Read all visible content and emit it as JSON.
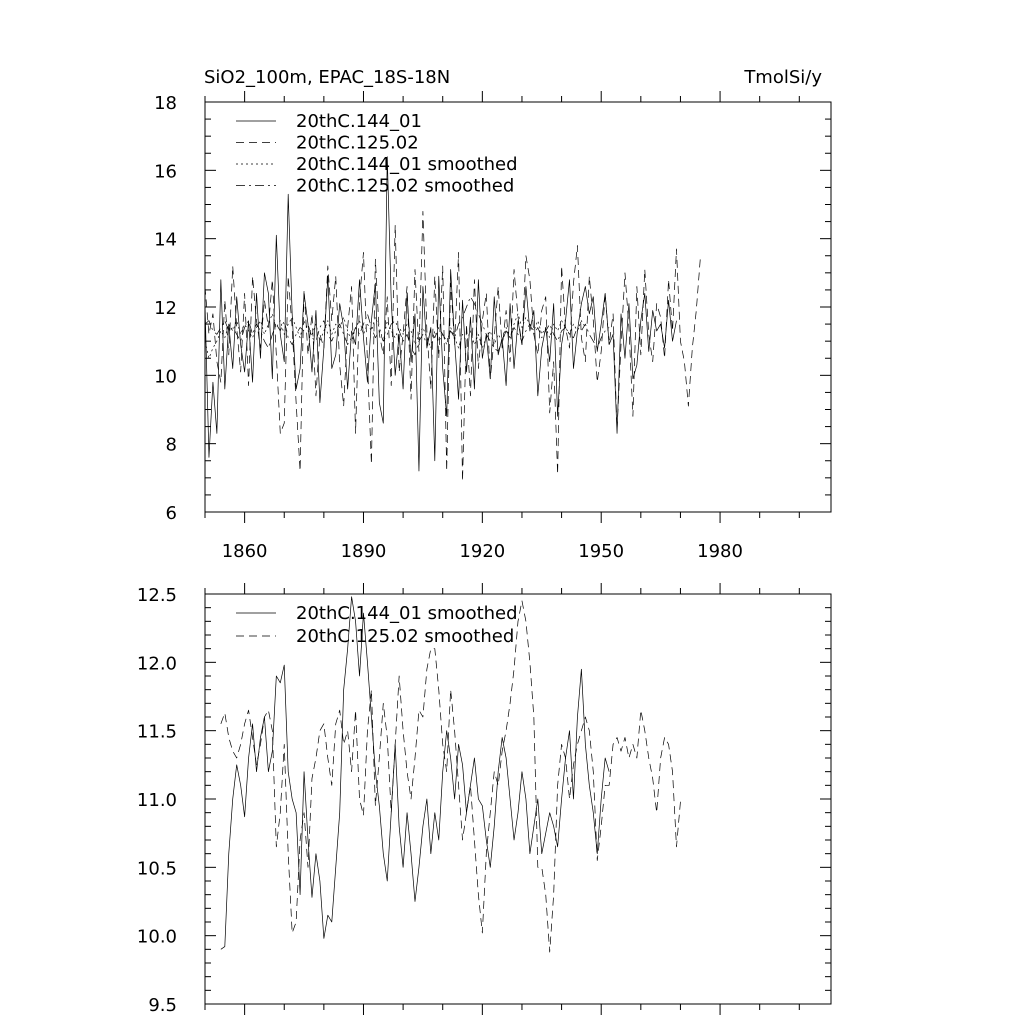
{
  "chart_data": [
    {
      "type": "line",
      "title_left": "SiO2_100m, EPAC_18S-18N",
      "title_right": "TmolSi/y",
      "xlabel": "",
      "ylabel": "",
      "xlim": [
        1850,
        2008
      ],
      "ylim": [
        6,
        18
      ],
      "x_ticks": [
        1860,
        1890,
        1920,
        1950,
        1980
      ],
      "y_ticks": [
        6,
        8,
        10,
        12,
        14,
        16,
        18
      ],
      "y_tick_labels": [
        "6",
        "8",
        "10",
        "12",
        "14",
        "16",
        "18"
      ],
      "x_tick_labels": [
        "1860",
        "1890",
        "1920",
        "1950",
        "1980"
      ],
      "legend": [
        {
          "label": "20thC.144_01",
          "style": "solid"
        },
        {
          "label": "20thC.125.02",
          "style": "dashed"
        },
        {
          "label": "20thC.144_01 smoothed",
          "style": "dotted"
        },
        {
          "label": "20thC.125.02 smoothed",
          "style": "dashdot"
        }
      ],
      "series": [
        {
          "name": "20thC.144_01",
          "style": "solid",
          "x_start": 1850,
          "values": [
            12.1,
            7.6,
            9.8,
            8.3,
            12.8,
            9.6,
            11.5,
            10.2,
            12.3,
            10.9,
            10.1,
            11.6,
            9.8,
            12.4,
            10.5,
            13.0,
            12.4,
            9.9,
            14.1,
            11.2,
            10.4,
            15.3,
            11.8,
            9.6,
            10.2,
            12.4,
            11.5,
            10.1,
            11.9,
            9.2,
            10.8,
            12.9,
            10.2,
            10.6,
            12.1,
            11.4,
            9.6,
            11.3,
            10.9,
            12.8,
            11.1,
            9.8,
            11.6,
            12.7,
            9.2,
            8.6,
            16.4,
            12.2,
            10.0,
            11.2,
            9.6,
            12.4,
            10.4,
            11.8,
            7.2,
            12.6,
            10.8,
            11.4,
            7.5,
            12.9,
            10.2,
            8.8,
            13.1,
            11.0,
            9.3,
            12.2,
            10.1,
            11.7,
            9.6,
            12.8,
            10.5,
            11.2,
            9.9,
            12.3,
            10.6,
            11.1,
            9.7,
            12.1,
            10.2,
            11.6,
            10.9,
            12.6,
            11.3,
            11.9,
            9.4,
            10.8,
            11.4,
            10.4,
            12.1,
            8.8,
            10.9,
            11.6,
            12.8,
            10.2,
            11.3,
            12.1,
            12.6,
            11.8,
            12.3,
            10.7,
            11.5,
            12.4,
            10.9,
            11.2,
            8.3,
            11.8,
            10.5,
            12.1,
            9.9,
            10.3,
            11.6,
            12.4,
            10.7,
            11.9,
            11.3,
            11.5,
            10.8,
            12.2,
            11.0,
            11.6
          ]
        },
        {
          "name": "20thC.125.02",
          "style": "dashed",
          "x_start": 1850,
          "values": [
            12.6,
            11.2,
            11.8,
            10.4,
            9.8,
            12.2,
            10.6,
            13.2,
            11.4,
            10.1,
            12.4,
            9.7,
            12.9,
            11.6,
            10.8,
            12.2,
            11.4,
            12.8,
            10.6,
            8.3,
            8.6,
            12.9,
            11.4,
            9.2,
            7.2,
            12.5,
            10.6,
            11.8,
            9.4,
            11.2,
            10.8,
            13.2,
            11.6,
            12.9,
            10.3,
            9.1,
            11.4,
            12.6,
            8.3,
            12.2,
            13.6,
            10.4,
            7.4,
            13.4,
            11.2,
            10.6,
            12.3,
            9.7,
            14.4,
            10.1,
            11.2,
            12.6,
            9.3,
            13.1,
            10.7,
            14.8,
            11.3,
            9.6,
            12.9,
            10.5,
            13.2,
            7.2,
            12.7,
            10.9,
            13.6,
            6.9,
            11.5,
            9.4,
            12.8,
            10.2,
            11.6,
            12.4,
            9.9,
            11.1,
            12.6,
            10.8,
            11.9,
            10.4,
            13.1,
            11.7,
            10.9,
            13.5,
            12.8,
            11.2,
            10.6,
            11.9,
            12.3,
            8.9,
            10.4,
            7.1,
            13.2,
            11.4,
            10.8,
            12.7,
            13.8,
            11.1,
            10.4,
            12.9,
            11.6,
            9.8,
            10.7,
            12.4,
            10.9,
            11.8,
            8.4,
            10.9,
            13.0,
            11.4,
            8.8,
            12.6,
            10.6,
            13.1,
            11.2,
            10.4,
            12.1,
            11.7,
            10.5,
            12.8,
            11.3,
            13.7,
            11.0,
            10.4,
            9.1,
            10.8,
            11.9,
            13.4
          ]
        },
        {
          "name": "20thC.144_01 smoothed",
          "style": "dotted",
          "x_start": 1850,
          "values": [
            11.0,
            10.5,
            10.8,
            11.0,
            11.3,
            11.1,
            11.5,
            11.3,
            11.6,
            11.2,
            11.5,
            11.3,
            11.1,
            11.4,
            11.6,
            11.2,
            11.5,
            11.8,
            11.4,
            11.6,
            11.2,
            11.5,
            11.7,
            11.4,
            11.1,
            11.6,
            11.3,
            11.2,
            11.5,
            11.0,
            11.3,
            11.6,
            11.2,
            11.5,
            11.4,
            11.7,
            11.3,
            11.0,
            11.4,
            11.6,
            11.2,
            11.5,
            11.3,
            11.7,
            11.4,
            11.0,
            11.6,
            11.3,
            11.1,
            11.4,
            11.2,
            11.5,
            11.3,
            10.9,
            11.2,
            11.4,
            11.1,
            10.8,
            11.3,
            11.0,
            11.2,
            10.9,
            11.4,
            11.1,
            10.8,
            11.2,
            11.0,
            11.3,
            10.9,
            11.2,
            10.8,
            11.1,
            11.3,
            10.9,
            11.2,
            11.0,
            11.4,
            11.1,
            11.5,
            11.8,
            11.4,
            11.7,
            11.5,
            11.3,
            11.6,
            11.2,
            11.4,
            11.1,
            11.5,
            11.3,
            11.6,
            11.4,
            11.2,
            11.5,
            11.3,
            11.6,
            11.4
          ]
        },
        {
          "name": "20thC.125.02 smoothed",
          "style": "dashdot",
          "x_start": 1850,
          "values": [
            11.5,
            11.6,
            11.3,
            11.2,
            11.4,
            11.6,
            11.3,
            11.4,
            11.2,
            11.0,
            11.4,
            11.6,
            11.2,
            11.5,
            11.3,
            11.0,
            10.8,
            11.2,
            11.5,
            11.3,
            11.6,
            11.1,
            10.9,
            11.2,
            11.4,
            11.3,
            11.5,
            11.1,
            11.0,
            11.4,
            11.6,
            11.2,
            11.0,
            11.3,
            11.5,
            11.2,
            10.9,
            11.1,
            11.4,
            11.2,
            11.5,
            11.8,
            11.4,
            11.1,
            11.3,
            11.0,
            11.2,
            11.5,
            11.6,
            11.3,
            11.0,
            11.2,
            10.8,
            10.6,
            11.0,
            11.2,
            10.9,
            11.3,
            11.1,
            11.4,
            11.2,
            11.0,
            11.3,
            11.1,
            11.5,
            11.7,
            12.0,
            12.3,
            12.1,
            11.8,
            11.5,
            11.2,
            11.0,
            10.8,
            10.7,
            11.0,
            11.3,
            11.1,
            11.4,
            11.2,
            11.0,
            11.3,
            11.5,
            11.2,
            11.4,
            11.1,
            11.3,
            11.5,
            11.2,
            11.0,
            11.3,
            11.4,
            11.2,
            11.1,
            11.4,
            11.3,
            11.5,
            11.2,
            11.0,
            10.8,
            11.1,
            11.3,
            11.4
          ]
        }
      ]
    },
    {
      "type": "line",
      "title_left": "",
      "title_right": "",
      "xlabel": "",
      "ylabel": "",
      "xlim": [
        1850,
        2008
      ],
      "ylim": [
        9.5,
        12.5
      ],
      "x_ticks": [
        1860,
        1890,
        1920,
        1950,
        1980
      ],
      "y_ticks": [
        9.5,
        10.0,
        10.5,
        11.0,
        11.5,
        12.0,
        12.5
      ],
      "y_tick_labels": [
        "9.5",
        "10.0",
        "10.5",
        "11.0",
        "11.5",
        "12.0",
        "12.5"
      ],
      "legend": [
        {
          "label": "20thC.144_01 smoothed",
          "style": "solid"
        },
        {
          "label": "20thC.125.02 smoothed",
          "style": "dashed"
        }
      ],
      "series": [
        {
          "name": "20thC.144_01 smoothed",
          "style": "solid",
          "x_start": 1854,
          "values": [
            9.9,
            9.92,
            10.6,
            11.0,
            11.25,
            11.1,
            10.87,
            11.3,
            11.55,
            11.2,
            11.45,
            11.6,
            11.2,
            11.35,
            11.9,
            11.85,
            11.98,
            11.2,
            11.0,
            10.9,
            10.3,
            11.2,
            10.7,
            10.28,
            10.6,
            10.4,
            9.98,
            10.15,
            10.1,
            10.5,
            10.9,
            11.8,
            12.1,
            12.48,
            12.3,
            11.9,
            12.36,
            12.0,
            11.6,
            11.2,
            10.95,
            10.6,
            10.4,
            10.9,
            11.4,
            10.8,
            10.5,
            10.9,
            10.6,
            10.25,
            10.5,
            10.8,
            11.0,
            10.6,
            10.9,
            10.7,
            11.2,
            11.5,
            11.3,
            11.0,
            11.4,
            11.25,
            10.9,
            11.1,
            11.3,
            11.0,
            10.95,
            10.7,
            10.5,
            10.8,
            11.2,
            11.45,
            11.3,
            11.0,
            10.7,
            10.9,
            11.2,
            11.0,
            10.6,
            10.8,
            11.0,
            10.6,
            10.75,
            10.9,
            10.8,
            10.65,
            11.0,
            11.3,
            11.5,
            11.0,
            11.6,
            11.95,
            11.4,
            11.1,
            10.9,
            10.6,
            11.0,
            11.3,
            11.2
          ]
        },
        {
          "name": "20thC.125.02 smoothed",
          "style": "dashed",
          "x_start": 1854,
          "values": [
            11.55,
            11.63,
            11.45,
            11.35,
            11.3,
            11.4,
            11.55,
            11.65,
            11.45,
            11.25,
            11.4,
            11.6,
            11.65,
            11.5,
            10.65,
            10.9,
            11.4,
            10.6,
            10.02,
            10.1,
            10.7,
            10.9,
            10.5,
            11.15,
            11.3,
            11.5,
            11.55,
            11.3,
            11.1,
            11.55,
            11.65,
            11.4,
            11.5,
            11.2,
            11.65,
            11.0,
            10.88,
            11.5,
            11.8,
            10.95,
            11.3,
            11.7,
            11.45,
            10.9,
            11.4,
            11.9,
            11.5,
            11.2,
            11.0,
            11.3,
            11.65,
            11.6,
            11.95,
            12.1,
            12.1,
            11.8,
            11.4,
            11.2,
            11.8,
            11.5,
            11.1,
            10.7,
            10.9,
            11.1,
            10.7,
            10.3,
            10.02,
            10.6,
            10.9,
            11.2,
            11.1,
            11.35,
            11.5,
            11.7,
            11.95,
            12.3,
            12.45,
            12.3,
            12.0,
            11.6,
            10.5,
            10.5,
            10.3,
            9.88,
            10.3,
            11.1,
            11.4,
            11.3,
            11.0,
            11.25,
            11.4,
            11.5,
            11.6,
            11.5,
            11.2,
            10.55,
            10.8,
            11.1,
            11.1,
            11.4,
            11.45,
            11.35,
            11.45,
            11.3,
            11.4,
            11.3,
            11.65,
            11.5,
            11.3,
            11.15,
            10.9,
            11.3,
            11.45,
            11.4,
            11.2,
            10.65,
            10.98
          ]
        }
      ]
    }
  ]
}
